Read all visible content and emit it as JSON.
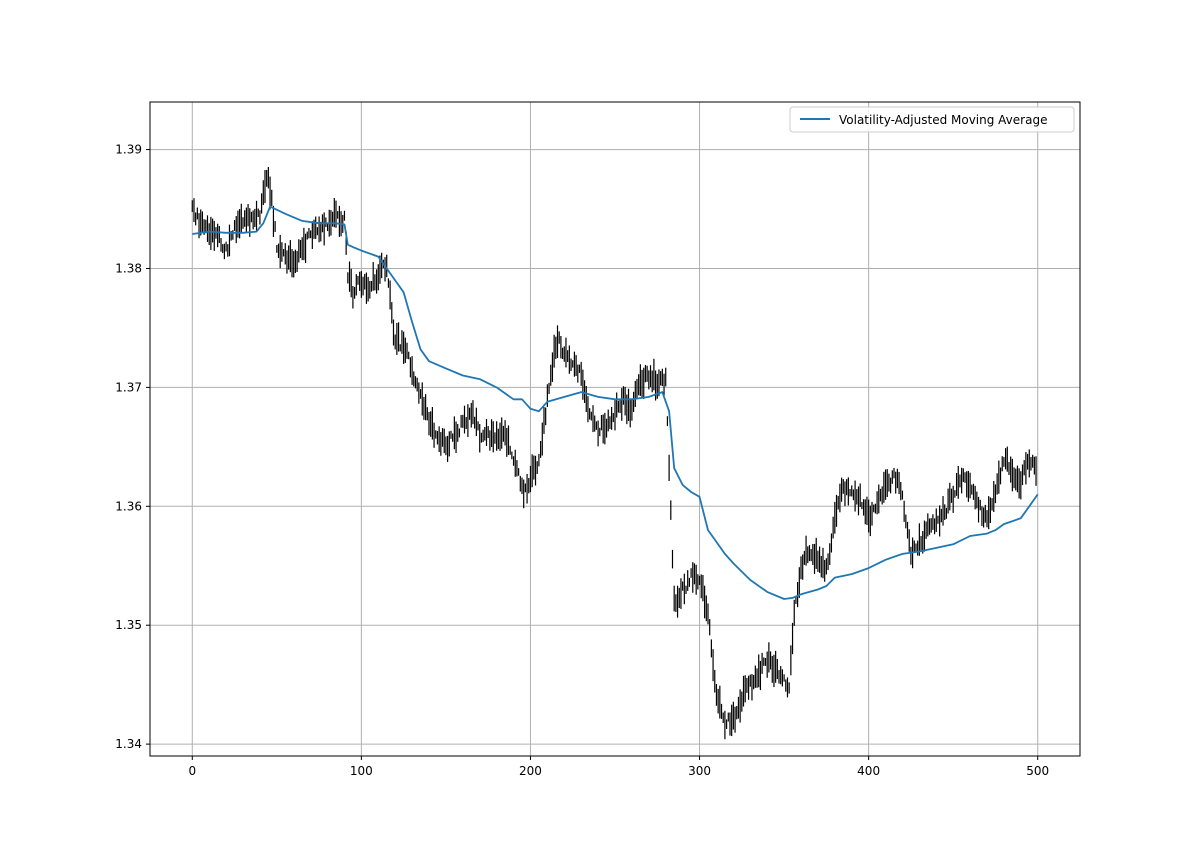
{
  "chart_data": {
    "type": "line",
    "title": "",
    "xlabel": "",
    "ylabel": "",
    "xlim": [
      -25,
      525
    ],
    "ylim": [
      1.339,
      1.394
    ],
    "xticks": [
      0,
      100,
      200,
      300,
      400,
      500
    ],
    "yticks": [
      1.34,
      1.35,
      1.36,
      1.37,
      1.38,
      1.39
    ],
    "xtick_labels": [
      "0",
      "100",
      "200",
      "300",
      "400",
      "500"
    ],
    "ytick_labels": [
      "1.34",
      "1.35",
      "1.36",
      "1.37",
      "1.38",
      "1.39"
    ],
    "grid": true,
    "legend_position": "top-right",
    "price_bars": {
      "color": "#000000",
      "anchor_x": [
        0,
        5,
        10,
        15,
        20,
        25,
        30,
        35,
        40,
        43,
        45,
        47,
        50,
        55,
        60,
        65,
        70,
        75,
        80,
        85,
        90,
        92,
        95,
        100,
        105,
        110,
        115,
        118,
        120,
        125,
        130,
        135,
        140,
        145,
        150,
        155,
        160,
        165,
        170,
        175,
        180,
        185,
        190,
        193,
        196,
        200,
        205,
        210,
        213,
        216,
        220,
        225,
        230,
        235,
        240,
        245,
        250,
        255,
        260,
        265,
        270,
        275,
        280,
        283,
        285,
        290,
        295,
        300,
        305,
        310,
        315,
        320,
        325,
        330,
        335,
        340,
        345,
        350,
        353,
        356,
        360,
        365,
        370,
        375,
        380,
        385,
        390,
        395,
        400,
        405,
        410,
        415,
        420,
        423,
        425,
        430,
        435,
        440,
        445,
        450,
        455,
        460,
        465,
        470,
        475,
        480,
        485,
        490,
        495,
        500
      ],
      "anchor_y": [
        1.385,
        1.3838,
        1.3832,
        1.3828,
        1.3815,
        1.3832,
        1.3842,
        1.384,
        1.3845,
        1.387,
        1.388,
        1.3855,
        1.382,
        1.381,
        1.3805,
        1.3815,
        1.383,
        1.3835,
        1.3835,
        1.3845,
        1.384,
        1.3795,
        1.378,
        1.379,
        1.3785,
        1.3795,
        1.3805,
        1.376,
        1.374,
        1.3735,
        1.3715,
        1.3695,
        1.367,
        1.366,
        1.365,
        1.366,
        1.367,
        1.368,
        1.366,
        1.366,
        1.3655,
        1.366,
        1.364,
        1.363,
        1.361,
        1.3625,
        1.364,
        1.369,
        1.372,
        1.374,
        1.373,
        1.372,
        1.371,
        1.368,
        1.3665,
        1.367,
        1.368,
        1.369,
        1.368,
        1.3705,
        1.371,
        1.3705,
        1.3705,
        1.36,
        1.352,
        1.353,
        1.354,
        1.354,
        1.351,
        1.344,
        1.342,
        1.342,
        1.344,
        1.345,
        1.346,
        1.347,
        1.3465,
        1.3455,
        1.345,
        1.351,
        1.355,
        1.3565,
        1.3555,
        1.3545,
        1.359,
        1.3615,
        1.361,
        1.3605,
        1.359,
        1.36,
        1.3615,
        1.3625,
        1.361,
        1.358,
        1.356,
        1.357,
        1.358,
        1.3585,
        1.3595,
        1.361,
        1.3625,
        1.362,
        1.36,
        1.359,
        1.361,
        1.364,
        1.363,
        1.362,
        1.364,
        1.3625
      ],
      "count": 500,
      "seed": 1377,
      "noise": 0.0009
    },
    "series": [
      {
        "name": "Volatility-Adjusted Moving Average",
        "color": "#1f77b4",
        "x": [
          0,
          10,
          20,
          30,
          38,
          42,
          46,
          55,
          65,
          75,
          85,
          90,
          92,
          95,
          100,
          110,
          115,
          120,
          125,
          130,
          135,
          140,
          150,
          160,
          170,
          180,
          190,
          195,
          200,
          205,
          210,
          220,
          230,
          240,
          250,
          260,
          270,
          278,
          282,
          285,
          290,
          295,
          300,
          305,
          310,
          315,
          320,
          330,
          340,
          350,
          355,
          360,
          370,
          375,
          380,
          390,
          400,
          410,
          420,
          430,
          440,
          450,
          460,
          470,
          475,
          480,
          490,
          495,
          500
        ],
        "y": [
          1.3829,
          1.3831,
          1.383,
          1.383,
          1.3831,
          1.3838,
          1.3852,
          1.3846,
          1.384,
          1.3838,
          1.3838,
          1.3837,
          1.382,
          1.3818,
          1.3815,
          1.381,
          1.38,
          1.379,
          1.378,
          1.3755,
          1.3732,
          1.3722,
          1.3716,
          1.371,
          1.3707,
          1.37,
          1.369,
          1.369,
          1.3682,
          1.368,
          1.3688,
          1.3692,
          1.3696,
          1.3692,
          1.369,
          1.369,
          1.3692,
          1.3696,
          1.368,
          1.3632,
          1.3618,
          1.3612,
          1.3608,
          1.358,
          1.357,
          1.356,
          1.3552,
          1.3538,
          1.3528,
          1.3522,
          1.3523,
          1.3526,
          1.353,
          1.3533,
          1.354,
          1.3543,
          1.3548,
          1.3555,
          1.356,
          1.3562,
          1.3565,
          1.3568,
          1.3575,
          1.3577,
          1.358,
          1.3585,
          1.359,
          1.36,
          1.361
        ]
      }
    ]
  }
}
